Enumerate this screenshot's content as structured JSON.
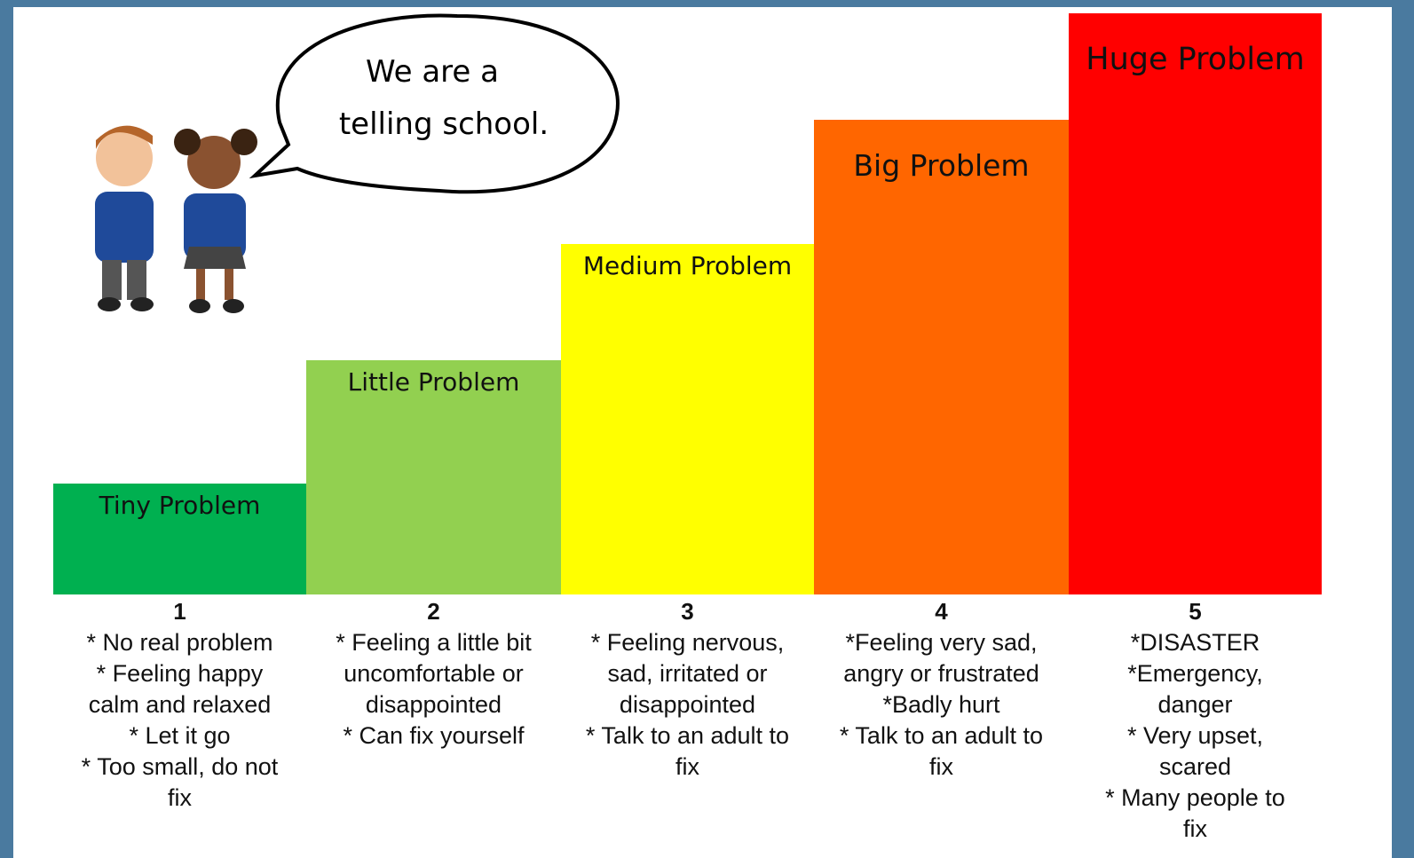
{
  "bubble": {
    "lines": [
      "We are a",
      "telling school."
    ]
  },
  "steps": [
    {
      "number": "1",
      "label": "Tiny Problem",
      "color": "#00b050",
      "lines": [
        "* No real problem",
        "* Feeling happy",
        "calm and relaxed",
        "* Let it go",
        "* Too small, do not",
        "fix"
      ]
    },
    {
      "number": "2",
      "label": "Little Problem",
      "color": "#92d050",
      "lines": [
        "* Feeling a little bit",
        "uncomfortable or",
        "disappointed",
        "* Can fix yourself"
      ]
    },
    {
      "number": "3",
      "label": "Medium Problem",
      "color": "#ffff00",
      "lines": [
        "* Feeling nervous,",
        "sad, irritated or",
        "disappointed",
        "* Talk to an adult to",
        "fix"
      ]
    },
    {
      "number": "4",
      "label": "Big Problem",
      "color": "#ff6600",
      "lines": [
        "*Feeling very sad,",
        "angry or frustrated",
        "*Badly hurt",
        "* Talk to an adult to",
        "fix"
      ]
    },
    {
      "number": "5",
      "label": "Huge Problem",
      "color": "#ff0000",
      "lines": [
        "*DISASTER",
        "*Emergency,",
        "danger",
        "* Very upset,",
        "scared",
        "* Many people to",
        "fix"
      ]
    }
  ]
}
